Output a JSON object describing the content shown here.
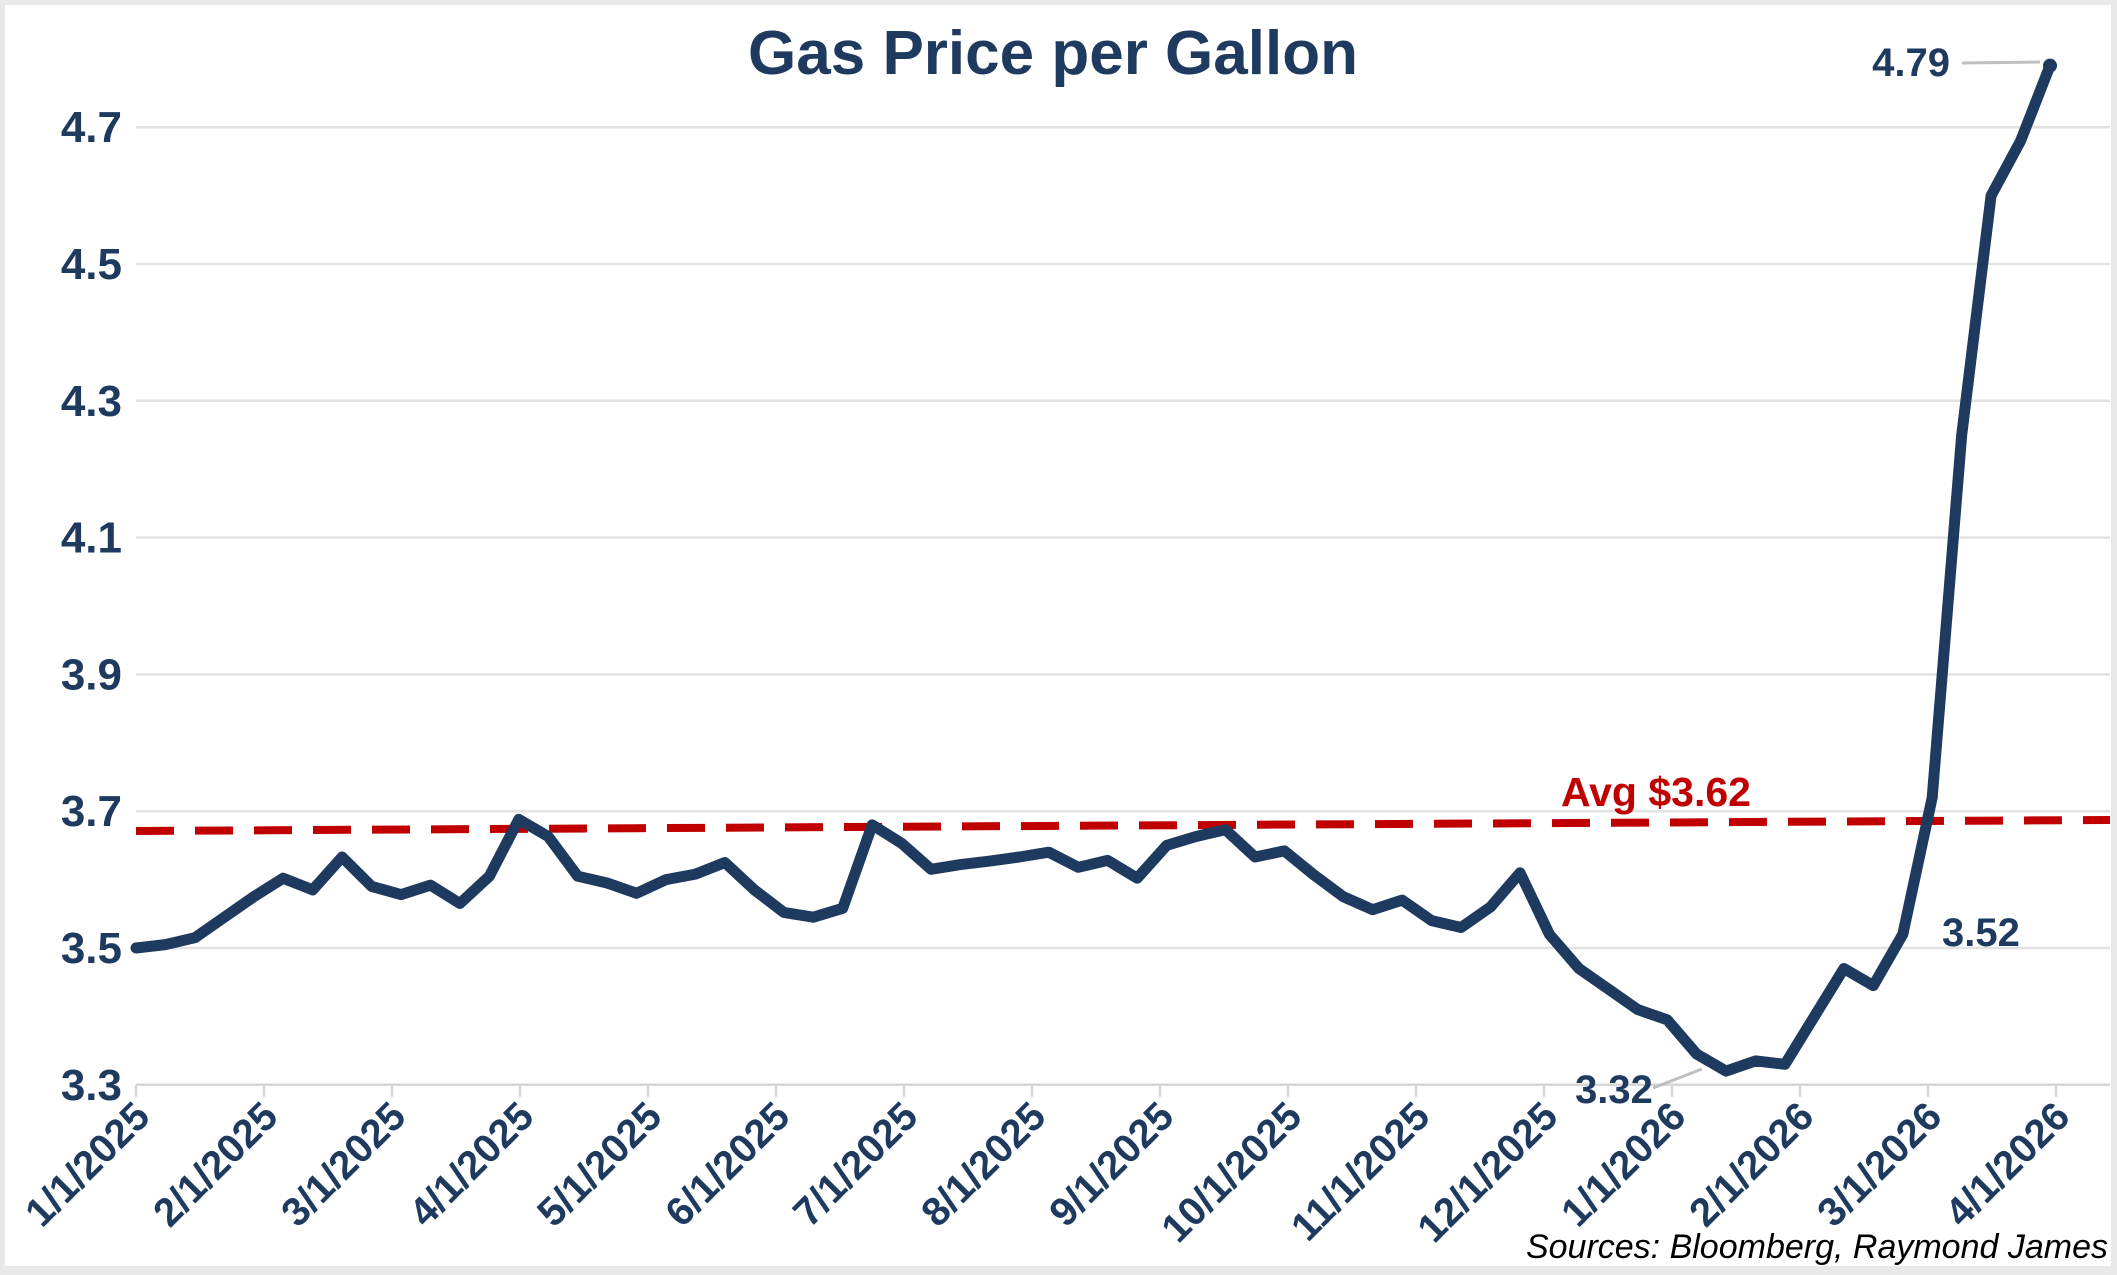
{
  "header": {
    "title": "Gas Price per Gallon"
  },
  "footer": {
    "sources": "Sources: Bloomberg, Raymond James"
  },
  "annotations": {
    "avg_label": "Avg $3.62",
    "max_label": "4.79",
    "pre_spike_label": "3.52",
    "min_label": "3.32"
  },
  "colors": {
    "navy": "#1e3a5f",
    "red": "#c00000",
    "grid": "#e2e2e2",
    "tick": "#d6d6d6",
    "leader": "#c0c0c0",
    "frame": "#e9e9e9",
    "source_text": "#000000"
  },
  "chart_data": {
    "type": "line",
    "title": "Gas Price per Gallon",
    "xlabel": "",
    "ylabel": "",
    "ylim": [
      3.3,
      4.8
    ],
    "grid": "horizontal",
    "legend": "none",
    "y_ticks": [
      3.3,
      3.5,
      3.7,
      3.9,
      4.1,
      4.3,
      4.5,
      4.7
    ],
    "x_tick_labels": [
      "1/1/2025",
      "2/1/2025",
      "3/1/2025",
      "4/1/2025",
      "5/1/2025",
      "6/1/2025",
      "7/1/2025",
      "8/1/2025",
      "9/1/2025",
      "10/1/2025",
      "11/1/2025",
      "12/1/2025",
      "1/1/2026",
      "2/1/2026",
      "3/1/2026",
      "4/1/2026"
    ],
    "x": [
      "1/1/2025",
      "1/8/2025",
      "1/15/2025",
      "1/22/2025",
      "1/29/2025",
      "2/5/2025",
      "2/12/2025",
      "2/19/2025",
      "2/26/2025",
      "3/5/2025",
      "3/12/2025",
      "3/19/2025",
      "3/26/2025",
      "4/2/2025",
      "4/9/2025",
      "4/16/2025",
      "4/23/2025",
      "4/30/2025",
      "5/7/2025",
      "5/14/2025",
      "5/21/2025",
      "5/28/2025",
      "6/4/2025",
      "6/11/2025",
      "6/18/2025",
      "6/25/2025",
      "7/2/2025",
      "7/9/2025",
      "7/16/2025",
      "7/23/2025",
      "7/30/2025",
      "8/6/2025",
      "8/13/2025",
      "8/20/2025",
      "8/27/2025",
      "9/3/2025",
      "9/10/2025",
      "9/17/2025",
      "9/24/2025",
      "10/1/2025",
      "10/8/2025",
      "10/15/2025",
      "10/22/2025",
      "10/29/2025",
      "11/5/2025",
      "11/12/2025",
      "11/19/2025",
      "11/26/2025",
      "12/3/2025",
      "12/10/2025",
      "12/17/2025",
      "12/24/2025",
      "12/31/2025",
      "1/7/2026",
      "1/14/2026",
      "1/21/2026",
      "1/28/2026",
      "2/4/2026",
      "2/11/2026",
      "2/18/2026",
      "2/25/2026",
      "3/4/2026",
      "3/11/2026",
      "3/18/2026",
      "3/25/2026",
      "4/1/2026"
    ],
    "series": [
      {
        "name": "Gas price per gallon (USD)",
        "values": [
          3.5,
          3.505,
          3.515,
          3.545,
          3.575,
          3.602,
          3.585,
          3.633,
          3.59,
          3.578,
          3.592,
          3.565,
          3.605,
          3.688,
          3.663,
          3.605,
          3.595,
          3.58,
          3.6,
          3.608,
          3.625,
          3.585,
          3.552,
          3.545,
          3.558,
          3.68,
          3.653,
          3.615,
          3.622,
          3.627,
          3.633,
          3.64,
          3.618,
          3.628,
          3.602,
          3.65,
          3.663,
          3.673,
          3.633,
          3.642,
          3.607,
          3.575,
          3.556,
          3.57,
          3.54,
          3.53,
          3.56,
          3.61,
          3.52,
          3.47,
          3.44,
          3.41,
          3.395,
          3.345,
          3.32,
          3.335,
          3.33,
          3.4,
          3.47,
          3.445,
          3.52,
          3.72,
          4.25,
          4.6,
          4.68,
          4.79
        ]
      }
    ],
    "reference_line": {
      "label": "Avg $3.62",
      "value": 3.62,
      "style": "dashed",
      "color": "#c00000"
    },
    "point_annotations": [
      {
        "text": "4.79",
        "x": "4/1/2026",
        "y": 4.79,
        "meaning": "final / maximum value"
      },
      {
        "text": "3.52",
        "x": "2/25/2026",
        "y": 3.52,
        "meaning": "value just before spike"
      },
      {
        "text": "3.32",
        "x": "1/14/2026",
        "y": 3.32,
        "meaning": "minimum value"
      }
    ]
  }
}
